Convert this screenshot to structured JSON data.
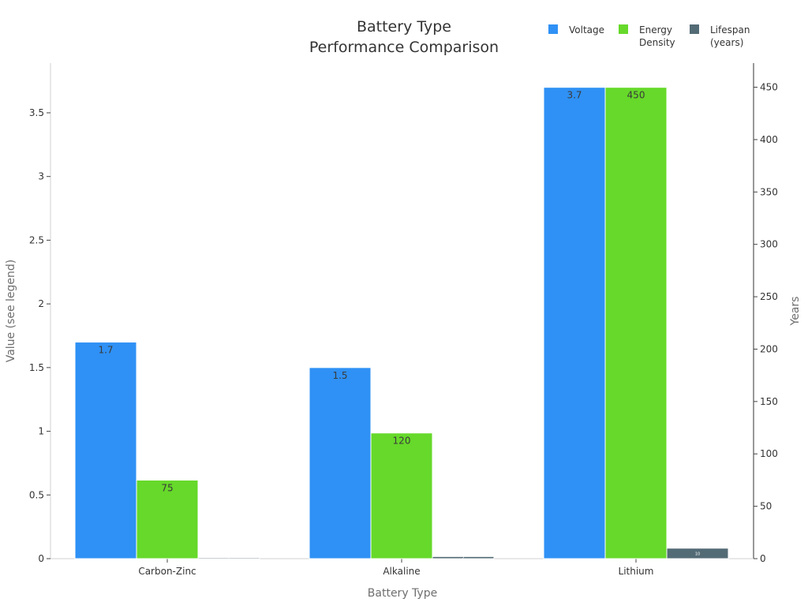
{
  "chart_data": {
    "type": "bar",
    "title": [
      "Battery Type",
      "Performance Comparison"
    ],
    "xlabel": "Battery Type",
    "ylabel_left": "Value (see legend)",
    "ylabel_right": "Years",
    "categories": [
      "Carbon-Zinc",
      "Alkaline",
      "Lithium"
    ],
    "left_axis": {
      "ylim": [
        0,
        3.89
      ],
      "ticks": [
        0,
        0.5,
        1,
        1.5,
        2,
        2.5,
        3,
        3.5
      ],
      "tick_labels": [
        "0",
        "0.5",
        "1",
        "1.5",
        "2",
        "2.5",
        "3",
        "3.5"
      ]
    },
    "right_axis": {
      "ylim": [
        0,
        473
      ],
      "ticks": [
        0,
        50,
        100,
        150,
        200,
        250,
        300,
        350,
        400,
        450
      ],
      "tick_labels": [
        "0",
        "50",
        "100",
        "150",
        "200",
        "250",
        "300",
        "350",
        "400",
        "450"
      ]
    },
    "series": [
      {
        "name": "Voltage",
        "legend": [
          "Voltage"
        ],
        "color": "#2f91f5",
        "axis": "left",
        "values": [
          1.7,
          1.5,
          3.7
        ],
        "labels": [
          "1.7",
          "1.5",
          "3.7"
        ]
      },
      {
        "name": "Energy Density",
        "legend": [
          "Energy",
          "Density"
        ],
        "color": "#66d92a",
        "axis": "left_scaled",
        "values": [
          75,
          120,
          450
        ],
        "labels": [
          "75",
          "120",
          "450"
        ]
      },
      {
        "name": "Lifespan (years)",
        "legend": [
          "Lifespan",
          "(years)"
        ],
        "color": "#536b75",
        "axis": "right",
        "values": [
          1,
          2,
          10
        ],
        "labels": [
          "1",
          "2",
          "10"
        ]
      }
    ],
    "grid": false,
    "legend_position": "top-right"
  }
}
